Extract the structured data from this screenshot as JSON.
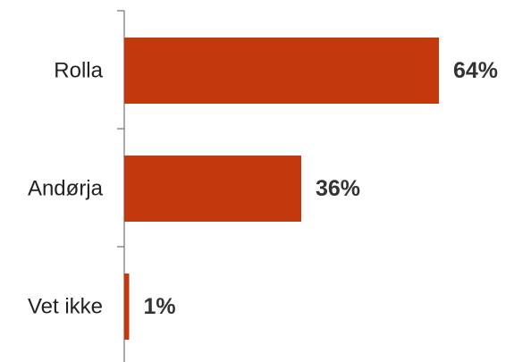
{
  "chart_data": {
    "type": "bar",
    "orientation": "horizontal",
    "categories": [
      "Rolla",
      "Andørja",
      "Vet ikke"
    ],
    "values": [
      64,
      36,
      1
    ],
    "value_labels": [
      "64%",
      "36%",
      "1%"
    ],
    "unit": "%",
    "bar_color": "#C4380E",
    "axis_color": "#555555",
    "grid": false,
    "legend": "none",
    "xlim": [
      0,
      100
    ]
  }
}
